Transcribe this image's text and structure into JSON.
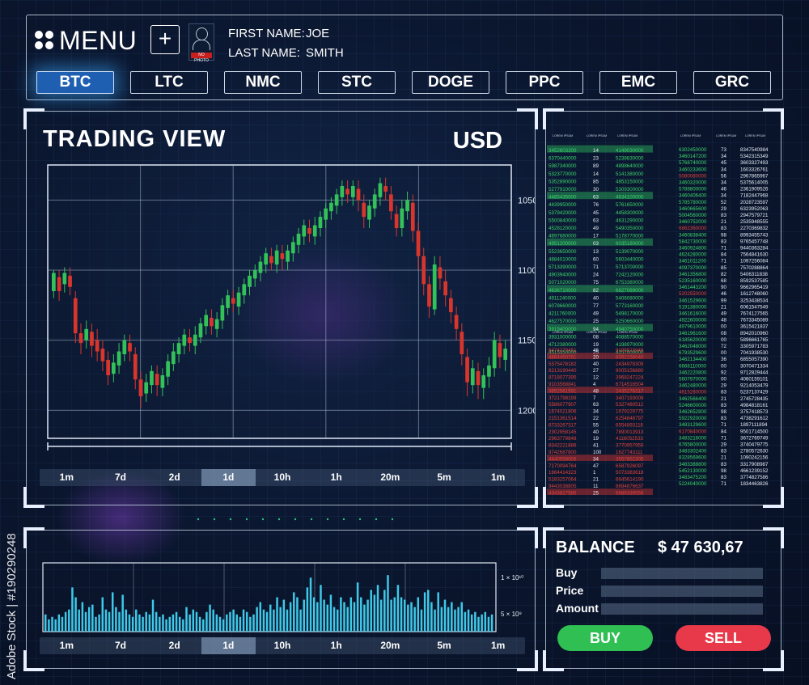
{
  "header": {
    "menu_label": "MENU",
    "add_symbol": "+",
    "avatar_caption": "NO PHOTO",
    "first_name_label": "FIRST NAME:",
    "first_name_value": "JOE",
    "last_name_label": "LAST NAME:",
    "last_name_value": "SMITH",
    "coins": [
      {
        "label": "BTC",
        "active": true
      },
      {
        "label": "LTC"
      },
      {
        "label": "NMC"
      },
      {
        "label": "STC"
      },
      {
        "label": "DOGE"
      },
      {
        "label": "PPC"
      },
      {
        "label": "EMC"
      },
      {
        "label": "GRC"
      }
    ]
  },
  "trading": {
    "title": "TRADING  VIEW",
    "currency": "USD",
    "y_ticks": [
      "1200",
      "1150",
      "1100",
      "1050"
    ],
    "timeframes": [
      "1m",
      "7d",
      "2d",
      "1d",
      "10h",
      "1h",
      "20m",
      "5m",
      "1m"
    ],
    "active_timeframe": "1d"
  },
  "volume": {
    "y_ticks": [
      "1 × 10¹⁰",
      "5 × 10⁹"
    ],
    "timeframes": [
      "1m",
      "7d",
      "2d",
      "1d",
      "10h",
      "1h",
      "20m",
      "5m",
      "1m"
    ],
    "active_timeframe": "1d"
  },
  "orderbook": {
    "header_label": "LOREM IPSUM",
    "left_bids": [
      [
        "3452803200",
        "14",
        "4149030000"
      ],
      [
        "6370440000",
        "23",
        "5238830000"
      ],
      [
        "5987340000",
        "89",
        "4898640000"
      ],
      [
        "5323770000",
        "14",
        "5141380000"
      ],
      [
        "5352890000",
        "85",
        "4853150000"
      ],
      [
        "5277910000",
        "30",
        "5309300000"
      ],
      [
        "4485435000",
        "63",
        "4634100000"
      ],
      [
        "4439950000",
        "76",
        "5761650000"
      ],
      [
        "5379420000",
        "45",
        "4458300000"
      ],
      [
        "5500840000",
        "63",
        "4631290000"
      ],
      [
        "4528120000",
        "49",
        "5490350000"
      ],
      [
        "4697880000",
        "17",
        "5178770000"
      ],
      [
        "4951200000",
        "03",
        "6035180000"
      ],
      [
        "5523650000",
        "13",
        "5139070000"
      ],
      [
        "4684010000",
        "60",
        "5603440000"
      ],
      [
        "5713390000",
        "71",
        "5713700000"
      ],
      [
        "4903940000",
        "24",
        "7242120000"
      ],
      [
        "5071020000",
        "75",
        "6753380000"
      ],
      [
        "4636710000",
        "82",
        "6827089000"
      ],
      [
        "4911240000",
        "40",
        "5406080000"
      ],
      [
        "6078660000",
        "77",
        "5773160000"
      ],
      [
        "4211760000",
        "49",
        "5498170000"
      ],
      [
        "4627570000",
        "25",
        "5250660000"
      ],
      [
        "3919400000",
        "94",
        "4940750000"
      ],
      [
        "3931000000",
        "08",
        "4088570000"
      ],
      [
        "4712380000",
        "19",
        "4198970000"
      ],
      [
        "4515350000",
        "25",
        "4257000000"
      ]
    ],
    "left_asks": [
      [
        "6474279451",
        "46",
        "9195523948"
      ],
      [
        "4864450781",
        "20",
        "6092158040"
      ],
      [
        "5375478182",
        "40",
        "2434978309"
      ],
      [
        "8213190440",
        "27",
        "9005156880"
      ],
      [
        "8718077395",
        "12",
        "3968247224"
      ],
      [
        "9103568841",
        "4",
        "6714516504"
      ],
      [
        "3652561591",
        "48",
        "2435276317"
      ],
      [
        "3721798199",
        "7",
        "3407193009"
      ],
      [
        "5586077907",
        "63",
        "5327480512"
      ],
      [
        "1674021806",
        "34",
        "1679229775"
      ],
      [
        "2151361514",
        "22",
        "6254848797"
      ],
      [
        "6733267317",
        "55",
        "6554893116"
      ],
      [
        "2302958145",
        "40",
        "7890013913"
      ],
      [
        "2963779848",
        "19",
        "4116052533"
      ],
      [
        "8342221886",
        "41",
        "3770957959"
      ],
      [
        "9742687800",
        "100",
        "1627743111"
      ],
      [
        "4440558005",
        "34",
        "3557852305"
      ],
      [
        "7170094764",
        "47",
        "6587926097"
      ],
      [
        "1664414323",
        "1",
        "5073383618"
      ],
      [
        "5183257064",
        "21",
        "6645614190"
      ],
      [
        "9443038805",
        "11",
        "8694876637"
      ],
      [
        "4343827585",
        "25",
        "6686339556"
      ]
    ],
    "right": [
      [
        "6302450000",
        "73",
        "8347540984"
      ],
      [
        "3460147200",
        "34",
        "5342315349"
      ],
      [
        "5768740000",
        "45",
        "3603327493"
      ],
      [
        "3460233600",
        "34",
        "1603326761"
      ],
      [
        "5080080000",
        "56",
        "2967865967"
      ],
      [
        "3460320000",
        "34",
        "5375614005"
      ],
      [
        "5788800000",
        "46",
        "2361909526"
      ],
      [
        "3460406400",
        "34",
        "7182447968"
      ],
      [
        "5785780000",
        "52",
        "2028723597"
      ],
      [
        "3460665600",
        "29",
        "6323952063"
      ],
      [
        "5004560000",
        "83",
        "2947579721"
      ],
      [
        "3460752000",
        "21",
        "2535948555"
      ],
      [
        "6862360000",
        "83",
        "2270369832"
      ],
      [
        "3460838400",
        "98",
        "8993455743"
      ],
      [
        "5842730000",
        "83",
        "9765457748"
      ],
      [
        "3460924800",
        "71",
        "9440363284"
      ],
      [
        "4624280000",
        "84",
        "7564841630"
      ],
      [
        "3461011200",
        "71",
        "1097256084"
      ],
      [
        "4097370000",
        "85",
        "7570288864"
      ],
      [
        "3461356800",
        "82",
        "5406311838"
      ],
      [
        "5235160000",
        "68",
        "8592537585"
      ],
      [
        "3461443200",
        "90",
        "9662965419"
      ],
      [
        "5202550000",
        "46",
        "1612748060"
      ],
      [
        "3461529600",
        "99",
        "3253438534"
      ],
      [
        "5191380000",
        "21",
        "6061547549"
      ],
      [
        "3461616000",
        "49",
        "7674127565"
      ],
      [
        "4922600000",
        "48",
        "7673345089"
      ],
      [
        "4979610000",
        "00",
        "3615421837"
      ],
      [
        "3461961600",
        "08",
        "8942010960"
      ],
      [
        "6185620000",
        "00",
        "5896661765"
      ],
      [
        "3462048000",
        "72",
        "3305971783"
      ],
      [
        "6793529600",
        "00",
        "7041938530"
      ],
      [
        "3462134400",
        "36",
        "6855057390"
      ],
      [
        "6668110000",
        "00",
        "3070471334"
      ],
      [
        "3462220800",
        "92",
        "9712829444"
      ],
      [
        "5607970000",
        "00",
        "4060159101"
      ],
      [
        "3462480000",
        "29",
        "9214053479"
      ],
      [
        "4615280000",
        "83",
        "5237137429"
      ],
      [
        "3462566400",
        "21",
        "2745728435"
      ],
      [
        "5246600000",
        "83",
        "4984818161"
      ],
      [
        "3462652800",
        "98",
        "3757418573"
      ],
      [
        "5922920000",
        "83",
        "4738291612"
      ],
      [
        "3483129600",
        "71",
        "1897111894"
      ],
      [
        "6170840000",
        "84",
        "9501714500"
      ],
      [
        "3483216000",
        "71",
        "3672769749"
      ],
      [
        "6765800000",
        "29",
        "3740479775"
      ],
      [
        "3483302400",
        "83",
        "2780572630"
      ],
      [
        "8328569600",
        "21",
        "1090242156"
      ],
      [
        "3483388800",
        "83",
        "3317908987"
      ],
      [
        "5452130000",
        "98",
        "4661239152"
      ],
      [
        "3483475200",
        "83",
        "3774827586"
      ],
      [
        "5224040000",
        "71",
        "1834463826"
      ]
    ]
  },
  "balance": {
    "label": "BALANCE",
    "value": "$  47  630,67",
    "buy_label": "Buy",
    "price_label": "Price",
    "amount_label": "Amount",
    "buy_button": "BUY",
    "sell_button": "SELL"
  },
  "chart_data": [
    {
      "type": "candlestick",
      "ylim": [
        1030,
        1225
      ],
      "yticks": [
        1050,
        1100,
        1150,
        1200
      ],
      "candles": [
        [
          1135,
          1148,
          1130,
          1150
        ],
        [
          1145,
          1135,
          1128,
          1150
        ],
        [
          1140,
          1148,
          1134,
          1152
        ],
        [
          1146,
          1138,
          1132,
          1152
        ],
        [
          1130,
          1105,
          1098,
          1135
        ],
        [
          1105,
          1098,
          1090,
          1112
        ],
        [
          1100,
          1108,
          1094,
          1114
        ],
        [
          1106,
          1096,
          1088,
          1112
        ],
        [
          1100,
          1092,
          1085,
          1108
        ],
        [
          1094,
          1085,
          1078,
          1100
        ],
        [
          1086,
          1075,
          1068,
          1092
        ],
        [
          1076,
          1084,
          1070,
          1090
        ],
        [
          1082,
          1092,
          1076,
          1098
        ],
        [
          1090,
          1100,
          1085,
          1104
        ],
        [
          1098,
          1092,
          1085,
          1104
        ],
        [
          1090,
          1072,
          1065,
          1095
        ],
        [
          1072,
          1060,
          1052,
          1078
        ],
        [
          1062,
          1070,
          1056,
          1076
        ],
        [
          1068,
          1078,
          1062,
          1082
        ],
        [
          1076,
          1068,
          1060,
          1082
        ],
        [
          1066,
          1075,
          1060,
          1080
        ],
        [
          1074,
          1085,
          1068,
          1090
        ],
        [
          1083,
          1092,
          1078,
          1098
        ],
        [
          1090,
          1098,
          1084,
          1102
        ],
        [
          1096,
          1104,
          1090,
          1108
        ],
        [
          1102,
          1098,
          1092,
          1108
        ],
        [
          1096,
          1104,
          1090,
          1110
        ],
        [
          1102,
          1112,
          1098,
          1116
        ],
        [
          1110,
          1118,
          1104,
          1122
        ],
        [
          1116,
          1110,
          1104,
          1122
        ],
        [
          1108,
          1115,
          1102,
          1120
        ],
        [
          1114,
          1125,
          1108,
          1130
        ],
        [
          1123,
          1132,
          1118,
          1136
        ],
        [
          1130,
          1126,
          1120,
          1136
        ],
        [
          1124,
          1134,
          1118,
          1138
        ],
        [
          1132,
          1140,
          1126,
          1144
        ],
        [
          1138,
          1146,
          1132,
          1150
        ],
        [
          1144,
          1150,
          1138,
          1154
        ],
        [
          1148,
          1156,
          1142,
          1160
        ],
        [
          1154,
          1162,
          1148,
          1166
        ],
        [
          1160,
          1155,
          1150,
          1166
        ],
        [
          1154,
          1164,
          1148,
          1168
        ],
        [
          1162,
          1158,
          1150,
          1168
        ],
        [
          1156,
          1164,
          1150,
          1168
        ],
        [
          1162,
          1170,
          1156,
          1174
        ],
        [
          1168,
          1176,
          1162,
          1180
        ],
        [
          1174,
          1182,
          1168,
          1186
        ],
        [
          1180,
          1176,
          1170,
          1186
        ],
        [
          1174,
          1182,
          1168,
          1188
        ],
        [
          1180,
          1188,
          1174,
          1192
        ],
        [
          1186,
          1194,
          1180,
          1198
        ],
        [
          1192,
          1198,
          1186,
          1202
        ],
        [
          1196,
          1204,
          1190,
          1208
        ],
        [
          1202,
          1210,
          1196,
          1214
        ],
        [
          1208,
          1204,
          1198,
          1214
        ],
        [
          1202,
          1210,
          1196,
          1214
        ],
        [
          1208,
          1200,
          1192,
          1214
        ],
        [
          1198,
          1188,
          1180,
          1204
        ],
        [
          1186,
          1196,
          1180,
          1200
        ],
        [
          1194,
          1204,
          1188,
          1208
        ],
        [
          1202,
          1212,
          1196,
          1216
        ],
        [
          1210,
          1206,
          1200,
          1216
        ],
        [
          1204,
          1192,
          1186,
          1210
        ],
        [
          1190,
          1180,
          1174,
          1196
        ],
        [
          1180,
          1194,
          1174,
          1200
        ],
        [
          1192,
          1200,
          1186,
          1206
        ],
        [
          1198,
          1178,
          1170,
          1204
        ],
        [
          1178,
          1160,
          1150,
          1184
        ],
        [
          1160,
          1140,
          1132,
          1166
        ],
        [
          1140,
          1124,
          1116,
          1146
        ],
        [
          1122,
          1154,
          1118,
          1160
        ],
        [
          1152,
          1144,
          1136,
          1160
        ],
        [
          1142,
          1132,
          1124,
          1150
        ],
        [
          1130,
          1120,
          1112,
          1136
        ],
        [
          1118,
          1108,
          1100,
          1124
        ],
        [
          1106,
          1090,
          1082,
          1112
        ],
        [
          1088,
          1070,
          1060,
          1094
        ],
        [
          1068,
          1080,
          1062,
          1086
        ],
        [
          1078,
          1068,
          1058,
          1084
        ],
        [
          1066,
          1075,
          1058,
          1080
        ],
        [
          1074,
          1082,
          1066,
          1088
        ],
        [
          1080,
          1100,
          1074,
          1106
        ],
        [
          1098,
          1088,
          1080,
          1104
        ],
        [
          1086,
          1094,
          1078,
          1100
        ]
      ]
    },
    {
      "type": "bar",
      "values": [
        0.7,
        0.5,
        0.6,
        0.5,
        0.7,
        0.6,
        0.8,
        0.9,
        1.8,
        1.4,
        0.9,
        1.2,
        0.8,
        1.0,
        1.1,
        0.6,
        0.7,
        1.4,
        0.9,
        0.8,
        1.6,
        1.0,
        0.8,
        1.5,
        0.9,
        0.7,
        0.6,
        0.9,
        0.7,
        0.6,
        0.8,
        0.7,
        1.3,
        0.8,
        0.6,
        0.7,
        0.5,
        0.6,
        0.7,
        0.8,
        0.6,
        0.5,
        1.0,
        0.7,
        0.9,
        0.8,
        0.6,
        0.5,
        0.8,
        1.1,
        0.9,
        0.7,
        0.6,
        0.5,
        0.7,
        0.8,
        0.9,
        0.7,
        0.6,
        0.9,
        0.8,
        0.6,
        0.7,
        1.0,
        1.2,
        0.9,
        0.8,
        1.1,
        0.9,
        1.4,
        1.0,
        1.3,
        0.9,
        1.2,
        1.6,
        1.4,
        0.9,
        1.3,
        1.8,
        2.2,
        1.4,
        1.2,
        1.9,
        1.3,
        1.1,
        1.5,
        1.0,
        0.9,
        1.4,
        1.2,
        1.0,
        1.4,
        1.2,
        2.0,
        1.4,
        1.1,
        1.3,
        1.7,
        1.5,
        1.9,
        1.3,
        1.7,
        2.3,
        1.3,
        1.4,
        1.9,
        1.4,
        1.3,
        1.1,
        1.2,
        1.0,
        1.4,
        0.9,
        1.6,
        1.7,
        1.2,
        0.9,
        1.6,
        1.0,
        1.3,
        1.0,
        1.2,
        0.9,
        1.0,
        1.2,
        0.8,
        0.9,
        0.7,
        0.8,
        0.6,
        0.7,
        0.8,
        0.6,
        0.7
      ],
      "ylim": [
        0,
        2.8
      ]
    }
  ]
}
